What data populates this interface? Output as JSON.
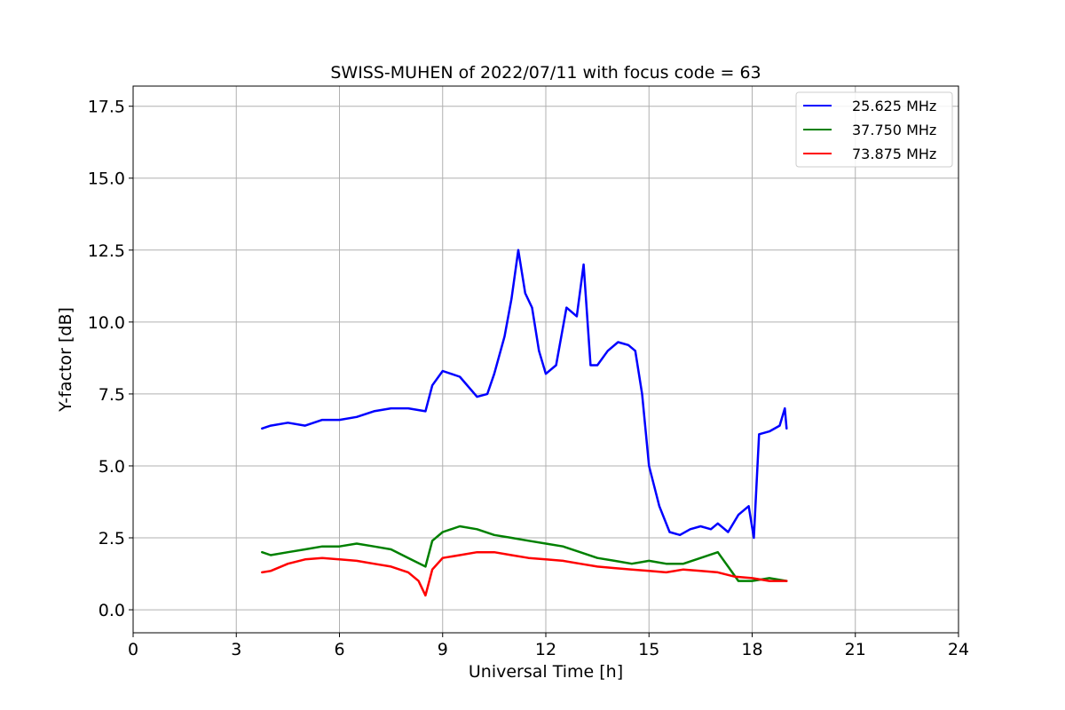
{
  "chart_data": {
    "type": "line",
    "title": "SWISS-MUHEN of 2022/07/11 with focus code = 63",
    "xlabel": "Universal Time [h]",
    "ylabel": "Y-factor [dB]",
    "xlim": [
      0,
      24
    ],
    "ylim": [
      -0.8,
      18.2
    ],
    "xticks": [
      0,
      3,
      6,
      9,
      12,
      15,
      18,
      21,
      24
    ],
    "xtick_labels": [
      "0",
      "3",
      "6",
      "9",
      "12",
      "15",
      "18",
      "21",
      "24"
    ],
    "yticks": [
      0,
      2.5,
      5,
      7.5,
      10,
      12.5,
      15,
      17.5
    ],
    "ytick_labels": [
      "0.0",
      "2.5",
      "5.0",
      "7.5",
      "10.0",
      "12.5",
      "15.0",
      "17.5"
    ],
    "grid": true,
    "legend_position": "top-right",
    "series": [
      {
        "name": "25.625 MHz",
        "color": "#0000ff",
        "x": [
          3.75,
          4.0,
          4.5,
          5.0,
          5.5,
          6.0,
          6.5,
          7.0,
          7.5,
          8.0,
          8.5,
          8.7,
          9.0,
          9.5,
          10.0,
          10.3,
          10.5,
          10.8,
          11.0,
          11.2,
          11.4,
          11.6,
          11.8,
          12.0,
          12.3,
          12.6,
          12.9,
          13.1,
          13.3,
          13.5,
          13.8,
          14.1,
          14.4,
          14.6,
          14.8,
          15.0,
          15.3,
          15.6,
          15.9,
          16.2,
          16.5,
          16.8,
          17.0,
          17.3,
          17.6,
          17.9,
          18.05,
          18.2,
          18.5,
          18.8,
          18.95,
          19.0
        ],
        "y": [
          6.3,
          6.4,
          6.5,
          6.4,
          6.6,
          6.6,
          6.7,
          6.9,
          7.0,
          7.0,
          6.9,
          7.8,
          8.3,
          8.1,
          7.4,
          7.5,
          8.2,
          9.5,
          10.8,
          12.5,
          11.0,
          10.5,
          9.0,
          8.2,
          8.5,
          10.5,
          10.2,
          12.0,
          8.5,
          8.5,
          9.0,
          9.3,
          9.2,
          9.0,
          7.5,
          5.0,
          3.6,
          2.7,
          2.6,
          2.8,
          2.9,
          2.8,
          3.0,
          2.7,
          3.3,
          3.6,
          2.5,
          6.1,
          6.2,
          6.4,
          7.0,
          6.3
        ]
      },
      {
        "name": "37.750 MHz",
        "color": "#008000",
        "x": [
          3.75,
          4.0,
          4.5,
          5.0,
          5.5,
          6.0,
          6.5,
          7.0,
          7.5,
          8.0,
          8.5,
          8.7,
          9.0,
          9.5,
          10.0,
          10.5,
          11.0,
          11.5,
          12.0,
          12.5,
          13.0,
          13.5,
          14.0,
          14.5,
          15.0,
          15.5,
          16.0,
          16.5,
          17.0,
          17.3,
          17.6,
          18.0,
          18.5,
          19.0
        ],
        "y": [
          2.0,
          1.9,
          2.0,
          2.1,
          2.2,
          2.2,
          2.3,
          2.2,
          2.1,
          1.8,
          1.5,
          2.4,
          2.7,
          2.9,
          2.8,
          2.6,
          2.5,
          2.4,
          2.3,
          2.2,
          2.0,
          1.8,
          1.7,
          1.6,
          1.7,
          1.6,
          1.6,
          1.8,
          2.0,
          1.5,
          1.0,
          1.0,
          1.1,
          1.0
        ]
      },
      {
        "name": "73.875 MHz",
        "color": "#ff0000",
        "x": [
          3.75,
          4.0,
          4.5,
          5.0,
          5.5,
          6.0,
          6.5,
          7.0,
          7.5,
          8.0,
          8.3,
          8.5,
          8.7,
          9.0,
          9.5,
          10.0,
          10.5,
          11.0,
          11.5,
          12.0,
          12.5,
          13.0,
          13.5,
          14.0,
          14.5,
          15.0,
          15.5,
          16.0,
          16.5,
          17.0,
          17.5,
          18.0,
          18.5,
          19.0
        ],
        "y": [
          1.3,
          1.35,
          1.6,
          1.75,
          1.8,
          1.75,
          1.7,
          1.6,
          1.5,
          1.3,
          1.0,
          0.5,
          1.4,
          1.8,
          1.9,
          2.0,
          2.0,
          1.9,
          1.8,
          1.75,
          1.7,
          1.6,
          1.5,
          1.45,
          1.4,
          1.35,
          1.3,
          1.4,
          1.35,
          1.3,
          1.15,
          1.1,
          1.0,
          1.0
        ]
      }
    ]
  }
}
